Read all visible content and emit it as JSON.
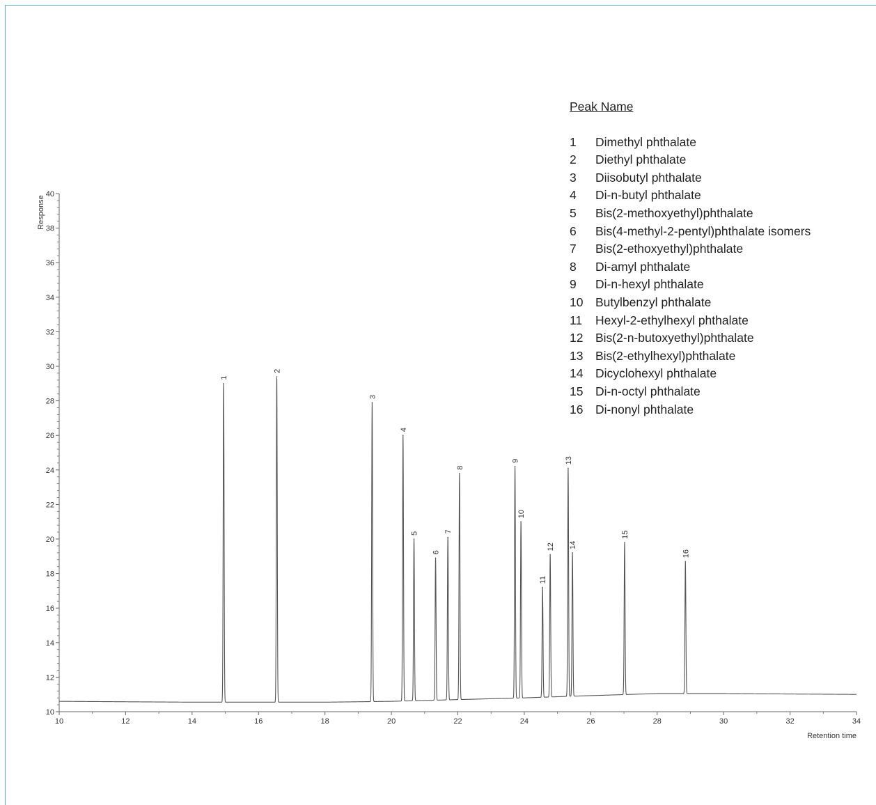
{
  "chart_data": {
    "type": "line",
    "ylabel": "Response",
    "xlabel": "Retention time",
    "xlim": [
      10,
      34
    ],
    "ylim": [
      10,
      40
    ],
    "x_ticks": [
      "10",
      "12",
      "14",
      "16",
      "18",
      "20",
      "22",
      "24",
      "26",
      "28",
      "30",
      "32",
      "34"
    ],
    "y_ticks": [
      "10",
      "12",
      "14",
      "16",
      "18",
      "20",
      "22",
      "24",
      "26",
      "28",
      "30",
      "32",
      "34",
      "36",
      "38",
      "40"
    ],
    "baseline": [
      [
        10,
        10.6
      ],
      [
        14,
        10.55
      ],
      [
        18,
        10.55
      ],
      [
        20,
        10.6
      ],
      [
        22,
        10.7
      ],
      [
        24,
        10.8
      ],
      [
        25.5,
        10.9
      ],
      [
        28,
        11.05
      ],
      [
        30,
        11.05
      ],
      [
        34,
        11.0
      ]
    ],
    "peaks": [
      {
        "label": "1",
        "x": 14.95,
        "y": 29.0
      },
      {
        "label": "2",
        "x": 16.55,
        "y": 29.4
      },
      {
        "label": "3",
        "x": 19.42,
        "y": 27.9
      },
      {
        "label": "4",
        "x": 20.35,
        "y": 26.0
      },
      {
        "label": "5",
        "x": 20.68,
        "y": 20.0
      },
      {
        "label": "6",
        "x": 21.33,
        "y": 18.9
      },
      {
        "label": "7",
        "x": 21.7,
        "y": 20.1
      },
      {
        "label": "8",
        "x": 22.05,
        "y": 23.8
      },
      {
        "label": "9",
        "x": 23.72,
        "y": 24.2
      },
      {
        "label": "10",
        "x": 23.9,
        "y": 21.0
      },
      {
        "label": "11",
        "x": 24.55,
        "y": 17.2
      },
      {
        "label": "12",
        "x": 24.78,
        "y": 19.1
      },
      {
        "label": "13",
        "x": 25.32,
        "y": 24.1
      },
      {
        "label": "14",
        "x": 25.45,
        "y": 19.2
      },
      {
        "label": "15",
        "x": 27.02,
        "y": 19.8
      },
      {
        "label": "16",
        "x": 28.85,
        "y": 18.7
      }
    ],
    "line_color": "#555555"
  },
  "legend": {
    "title": "Peak Name",
    "items": [
      {
        "num": "1",
        "name": "Dimethyl phthalate"
      },
      {
        "num": "2",
        "name": "Diethyl phthalate"
      },
      {
        "num": "3",
        "name": "Diisobutyl phthalate"
      },
      {
        "num": "4",
        "name": "Di-n-butyl phthalate"
      },
      {
        "num": "5",
        "name": "Bis(2-methoxyethyl)phthalate"
      },
      {
        "num": "6",
        "name": "Bis(4-methyl-2-pentyl)phthalate isomers"
      },
      {
        "num": "7",
        "name": "Bis(2-ethoxyethyl)phthalate"
      },
      {
        "num": "8",
        "name": "Di-amyl phthalate"
      },
      {
        "num": "9",
        "name": "Di-n-hexyl phthalate"
      },
      {
        "num": "10",
        "name": "Butylbenzyl phthalate"
      },
      {
        "num": "11",
        "name": "Hexyl-2-ethylhexyl phthalate"
      },
      {
        "num": "12",
        "name": "Bis(2-n-butoxyethyl)phthalate"
      },
      {
        "num": "13",
        "name": "Bis(2-ethylhexyl)phthalate"
      },
      {
        "num": "14",
        "name": "Dicyclohexyl phthalate"
      },
      {
        "num": "15",
        "name": "Di-n-octyl phthalate"
      },
      {
        "num": "16",
        "name": "Di-nonyl phthalate"
      }
    ]
  }
}
